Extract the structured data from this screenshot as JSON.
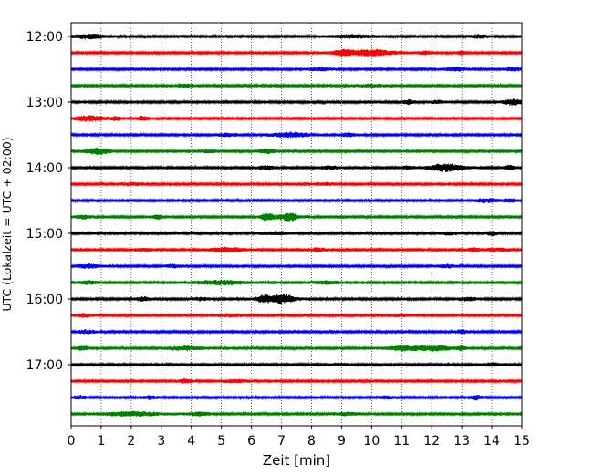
{
  "chart_data": {
    "type": "line",
    "title": "",
    "xlabel": "Zeit  [min]",
    "ylabel": "UTC (Lokalzeit = UTC + 02:00)",
    "xlim": [
      0,
      15
    ],
    "x_ticks": [
      "0",
      "1",
      "2",
      "3",
      "4",
      "5",
      "6",
      "7",
      "8",
      "9",
      "10",
      "11",
      "12",
      "13",
      "14",
      "15"
    ],
    "y_ticks": [
      "12:00",
      "13:00",
      "14:00",
      "15:00",
      "16:00",
      "17:00"
    ],
    "grid": "vertical dotted lines at each minute",
    "trace_interval_minutes": 15,
    "colors": [
      "#000000",
      "#ff0000",
      "#0000ff",
      "#008000"
    ],
    "traces": [
      {
        "start": "12:00",
        "color": "#000000",
        "bursts": [
          [
            0.6,
            0.5,
            2.2
          ],
          [
            9.4,
            0.8,
            1.4
          ],
          [
            13.6,
            0.3,
            1.6
          ]
        ]
      },
      {
        "start": "12:15",
        "color": "#ff0000",
        "bursts": [
          [
            10.0,
            0.8,
            3.0
          ],
          [
            9.0,
            0.4,
            2.2
          ],
          [
            13.0,
            0.2,
            1.6
          ],
          [
            11.8,
            0.3,
            1.3
          ]
        ]
      },
      {
        "start": "12:30",
        "color": "#0000ff",
        "bursts": [
          [
            8.3,
            0.4,
            1.4
          ],
          [
            12.8,
            0.4,
            1.6
          ],
          [
            14.7,
            0.3,
            1.6
          ]
        ]
      },
      {
        "start": "12:45",
        "color": "#008000",
        "bursts": [
          [
            3.8,
            0.3,
            1.4
          ],
          [
            10.0,
            0.4,
            1.2
          ]
        ]
      },
      {
        "start": "13:00",
        "color": "#000000",
        "bursts": [
          [
            11.2,
            0.2,
            2.0
          ],
          [
            14.7,
            0.3,
            2.8
          ],
          [
            12.2,
            0.3,
            1.2
          ]
        ]
      },
      {
        "start": "13:15",
        "color": "#ff0000",
        "bursts": [
          [
            0.6,
            0.5,
            2.6
          ],
          [
            2.4,
            0.2,
            2.0
          ],
          [
            1.5,
            0.2,
            1.8
          ]
        ]
      },
      {
        "start": "13:30",
        "color": "#0000ff",
        "bursts": [
          [
            7.3,
            0.6,
            2.4
          ],
          [
            9.2,
            0.3,
            1.6
          ],
          [
            5.2,
            0.4,
            1.3
          ]
        ]
      },
      {
        "start": "13:45",
        "color": "#008000",
        "bursts": [
          [
            0.9,
            0.4,
            3.0
          ],
          [
            6.5,
            0.3,
            2.0
          ],
          [
            4.6,
            0.3,
            1.4
          ]
        ]
      },
      {
        "start": "14:00",
        "color": "#000000",
        "bursts": [
          [
            12.5,
            0.6,
            3.6
          ],
          [
            6.5,
            0.3,
            1.6
          ],
          [
            8.6,
            0.3,
            1.3
          ],
          [
            14.6,
            0.2,
            2.0
          ],
          [
            11.2,
            0.2,
            1.6
          ]
        ]
      },
      {
        "start": "14:15",
        "color": "#ff0000",
        "bursts": [
          [
            2.0,
            0.3,
            1.3
          ],
          [
            8.5,
            0.4,
            1.2
          ]
        ]
      },
      {
        "start": "14:30",
        "color": "#0000ff",
        "bursts": [
          [
            13.8,
            0.4,
            1.8
          ],
          [
            14.6,
            0.2,
            1.6
          ]
        ]
      },
      {
        "start": "14:45",
        "color": "#008000",
        "bursts": [
          [
            0.4,
            0.3,
            1.6
          ],
          [
            2.9,
            0.2,
            1.8
          ],
          [
            7.0,
            0.6,
            2.2
          ],
          [
            6.5,
            0.15,
            2.8
          ],
          [
            7.3,
            0.15,
            3.0
          ]
        ]
      },
      {
        "start": "15:00",
        "color": "#000000",
        "bursts": [
          [
            14.0,
            0.15,
            2.4
          ],
          [
            6.8,
            0.6,
            1.3
          ],
          [
            12.6,
            0.3,
            1.3
          ]
        ]
      },
      {
        "start": "15:15",
        "color": "#ff0000",
        "bursts": [
          [
            5.2,
            0.6,
            2.0
          ],
          [
            13.4,
            0.2,
            2.0
          ],
          [
            2.4,
            0.3,
            1.4
          ],
          [
            8.2,
            0.3,
            1.4
          ],
          [
            14.2,
            0.4,
            1.6
          ]
        ]
      },
      {
        "start": "15:30",
        "color": "#0000ff",
        "bursts": [
          [
            0.6,
            0.4,
            1.8
          ],
          [
            12.5,
            0.3,
            1.5
          ],
          [
            3.4,
            0.3,
            1.3
          ]
        ]
      },
      {
        "start": "15:45",
        "color": "#008000",
        "bursts": [
          [
            5.0,
            1.0,
            2.0
          ],
          [
            8.5,
            0.5,
            1.6
          ],
          [
            0.6,
            0.3,
            1.6
          ]
        ]
      },
      {
        "start": "16:00",
        "color": "#000000",
        "bursts": [
          [
            7.0,
            0.45,
            4.2
          ],
          [
            6.4,
            0.25,
            3.0
          ],
          [
            2.4,
            0.2,
            2.0
          ],
          [
            4.3,
            0.3,
            1.3
          ],
          [
            13.2,
            0.3,
            1.4
          ]
        ]
      },
      {
        "start": "16:15",
        "color": "#ff0000",
        "bursts": [
          [
            0.4,
            0.3,
            1.5
          ],
          [
            5.3,
            0.4,
            1.3
          ],
          [
            11.0,
            0.4,
            1.2
          ]
        ]
      },
      {
        "start": "16:30",
        "color": "#0000ff",
        "bursts": [
          [
            0.5,
            0.3,
            1.4
          ],
          [
            13.0,
            0.2,
            1.6
          ]
        ]
      },
      {
        "start": "16:45",
        "color": "#008000",
        "bursts": [
          [
            3.8,
            0.6,
            1.8
          ],
          [
            11.2,
            0.7,
            2.4
          ],
          [
            12.2,
            0.5,
            2.0
          ],
          [
            13.0,
            0.15,
            2.2
          ],
          [
            0.4,
            0.2,
            2.0
          ]
        ]
      },
      {
        "start": "17:00",
        "color": "#000000",
        "bursts": [
          [
            14.0,
            0.4,
            1.5
          ],
          [
            9.0,
            0.3,
            1.2
          ]
        ]
      },
      {
        "start": "17:15",
        "color": "#ff0000",
        "bursts": [
          [
            3.8,
            0.2,
            2.2
          ],
          [
            5.5,
            0.5,
            1.4
          ]
        ]
      },
      {
        "start": "17:30",
        "color": "#0000ff",
        "bursts": [
          [
            0.3,
            0.2,
            1.8
          ],
          [
            13.5,
            0.2,
            2.0
          ],
          [
            2.6,
            0.3,
            1.4
          ],
          [
            10.5,
            0.3,
            1.2
          ]
        ]
      },
      {
        "start": "17:45",
        "color": "#008000",
        "bursts": [
          [
            2.0,
            1.0,
            2.0
          ],
          [
            4.3,
            0.4,
            1.6
          ],
          [
            9.2,
            0.5,
            1.3
          ]
        ]
      }
    ]
  }
}
